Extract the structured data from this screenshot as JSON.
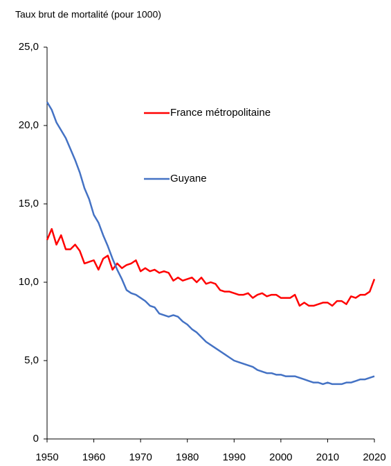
{
  "chart_data": {
    "type": "line",
    "title": "Taux brut de mortalité (pour 1000)",
    "x": [
      1950,
      1951,
      1952,
      1953,
      1954,
      1955,
      1956,
      1957,
      1958,
      1959,
      1960,
      1961,
      1962,
      1963,
      1964,
      1965,
      1966,
      1967,
      1968,
      1969,
      1970,
      1971,
      1972,
      1973,
      1974,
      1975,
      1976,
      1977,
      1978,
      1979,
      1980,
      1981,
      1982,
      1983,
      1984,
      1985,
      1986,
      1987,
      1988,
      1989,
      1990,
      1991,
      1992,
      1993,
      1994,
      1995,
      1996,
      1997,
      1998,
      1999,
      2000,
      2001,
      2002,
      2003,
      2004,
      2005,
      2006,
      2007,
      2008,
      2009,
      2010,
      2011,
      2012,
      2013,
      2014,
      2015,
      2016,
      2017,
      2018,
      2019,
      2020
    ],
    "series": [
      {
        "name": "France métropolitaine",
        "color": "#ff0000",
        "values": [
          12.7,
          13.4,
          12.4,
          13.0,
          12.1,
          12.1,
          12.4,
          12.0,
          11.2,
          11.3,
          11.4,
          10.8,
          11.5,
          11.7,
          10.8,
          11.2,
          10.9,
          11.1,
          11.2,
          11.4,
          10.7,
          10.9,
          10.7,
          10.8,
          10.6,
          10.7,
          10.6,
          10.1,
          10.3,
          10.1,
          10.2,
          10.3,
          10.0,
          10.3,
          9.9,
          10.0,
          9.9,
          9.5,
          9.4,
          9.4,
          9.3,
          9.2,
          9.2,
          9.3,
          9.0,
          9.2,
          9.3,
          9.1,
          9.2,
          9.2,
          9.0,
          9.0,
          9.0,
          9.2,
          8.5,
          8.7,
          8.5,
          8.5,
          8.6,
          8.7,
          8.7,
          8.5,
          8.8,
          8.8,
          8.6,
          9.1,
          9.0,
          9.2,
          9.2,
          9.4,
          10.2
        ]
      },
      {
        "name": "Guyane",
        "color": "#4472c4",
        "values": [
          21.5,
          21.0,
          20.2,
          19.7,
          19.2,
          18.5,
          17.8,
          17.0,
          16.0,
          15.3,
          14.3,
          13.8,
          13.0,
          12.3,
          11.5,
          10.8,
          10.2,
          9.5,
          9.3,
          9.2,
          9.0,
          8.8,
          8.5,
          8.4,
          8.0,
          7.9,
          7.8,
          7.9,
          7.8,
          7.5,
          7.3,
          7.0,
          6.8,
          6.5,
          6.2,
          6.0,
          5.8,
          5.6,
          5.4,
          5.2,
          5.0,
          4.9,
          4.8,
          4.7,
          4.6,
          4.4,
          4.3,
          4.2,
          4.2,
          4.1,
          4.1,
          4.0,
          4.0,
          4.0,
          3.9,
          3.8,
          3.7,
          3.6,
          3.6,
          3.5,
          3.6,
          3.5,
          3.5,
          3.5,
          3.6,
          3.6,
          3.7,
          3.8,
          3.8,
          3.9,
          4.0
        ]
      }
    ],
    "xlim": [
      1950,
      2020
    ],
    "xticks": [
      1950,
      1960,
      1970,
      1980,
      1990,
      2000,
      2010,
      2020
    ],
    "ylim": [
      0,
      25
    ],
    "yticks": [
      0,
      {
        "value": 5,
        "label": "5,0"
      },
      {
        "value": 10,
        "label": "10,0"
      },
      {
        "value": 15,
        "label": "15,0"
      },
      {
        "value": 20,
        "label": "20,0"
      },
      {
        "value": 25,
        "label": "25,0"
      }
    ],
    "grid": false
  }
}
